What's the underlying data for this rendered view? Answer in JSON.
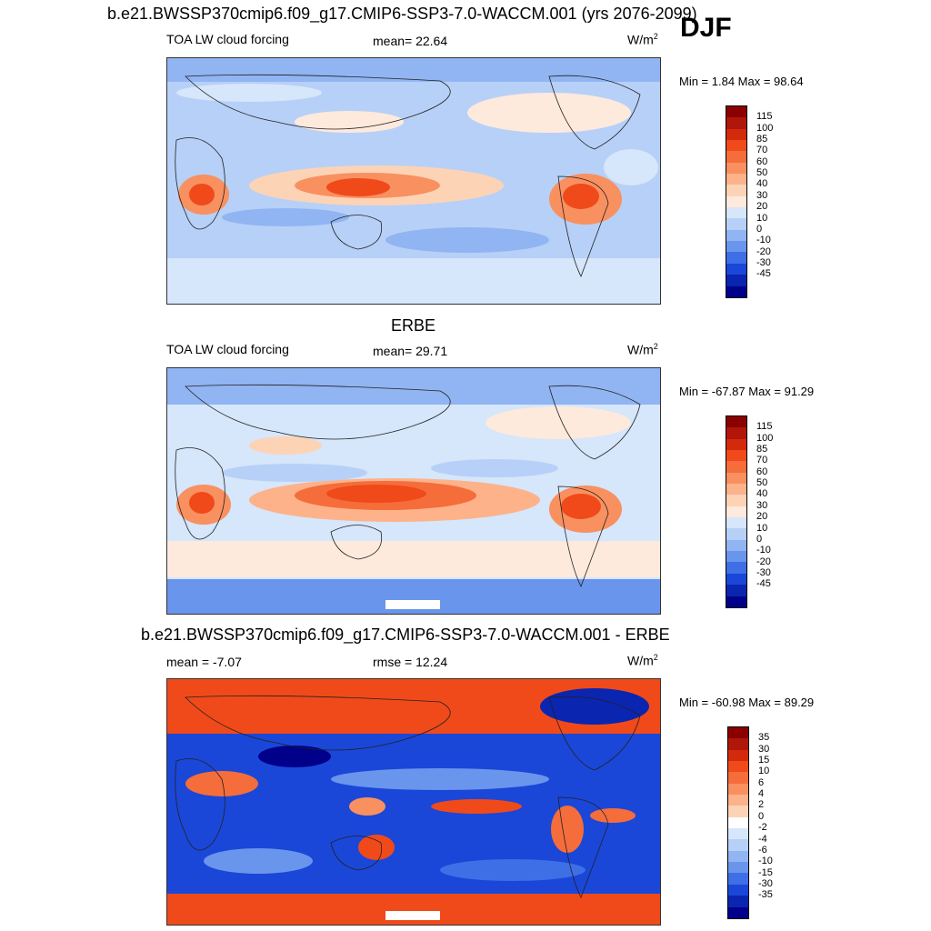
{
  "header": {
    "title": "b.e21.BWSSP370cmip6.f09_g17.CMIP6-SSP3-7.0-WACCM.001 (yrs 2076-2099)",
    "season": "DJF"
  },
  "panels": [
    {
      "title": "",
      "left_label": "TOA LW cloud forcing",
      "center_label": "mean=  22.64",
      "units": "W/m",
      "units_sup": "2",
      "minmax": "Min =   1.84 Max =  98.64",
      "colorbar": {
        "ticks": [
          "115",
          "100",
          "85",
          "70",
          "60",
          "50",
          "40",
          "30",
          "20",
          "10",
          "0",
          "-10",
          "-20",
          "-30",
          "-45"
        ],
        "colors": [
          "#8b0000",
          "#b0160a",
          "#d42a0c",
          "#f04a1a",
          "#f56d3b",
          "#f99060",
          "#fcb28a",
          "#fdd3b6",
          "#fdeadc",
          "#d6e6fb",
          "#b7d0f7",
          "#91b4f2",
          "#6a95ec",
          "#3f6fe6",
          "#1a47d8",
          "#0a25b0",
          "#00008b"
        ]
      }
    },
    {
      "title": "ERBE",
      "left_label": "TOA LW cloud forcing",
      "center_label": "mean=  29.71",
      "units": "W/m",
      "units_sup": "2",
      "minmax": "Min = -67.87 Max =  91.29",
      "colorbar": {
        "ticks": [
          "115",
          "100",
          "85",
          "70",
          "60",
          "50",
          "40",
          "30",
          "20",
          "10",
          "0",
          "-10",
          "-20",
          "-30",
          "-45"
        ],
        "colors": [
          "#8b0000",
          "#b0160a",
          "#d42a0c",
          "#f04a1a",
          "#f56d3b",
          "#f99060",
          "#fcb28a",
          "#fdd3b6",
          "#fdeadc",
          "#d6e6fb",
          "#b7d0f7",
          "#91b4f2",
          "#6a95ec",
          "#3f6fe6",
          "#1a47d8",
          "#0a25b0",
          "#00008b"
        ]
      }
    },
    {
      "title": "b.e21.BWSSP370cmip6.f09_g17.CMIP6-SSP3-7.0-WACCM.001 - ERBE",
      "left_label": "mean =  -7.07",
      "center_label": "rmse =  12.24",
      "units": "W/m",
      "units_sup": "2",
      "minmax": "Min = -60.98 Max =  89.29",
      "colorbar": {
        "ticks": [
          "35",
          "30",
          "15",
          "10",
          "6",
          "4",
          "2",
          "0",
          "-2",
          "-4",
          "-6",
          "-10",
          "-15",
          "-30",
          "-35"
        ],
        "colors": [
          "#8b0000",
          "#b0160a",
          "#d42a0c",
          "#f04a1a",
          "#f56d3b",
          "#f99060",
          "#fcb28a",
          "#fdd3b6",
          "#ffffff",
          "#d6e6fb",
          "#b7d0f7",
          "#91b4f2",
          "#6a95ec",
          "#3f6fe6",
          "#1a47d8",
          "#0a25b0",
          "#00008b"
        ]
      }
    }
  ]
}
